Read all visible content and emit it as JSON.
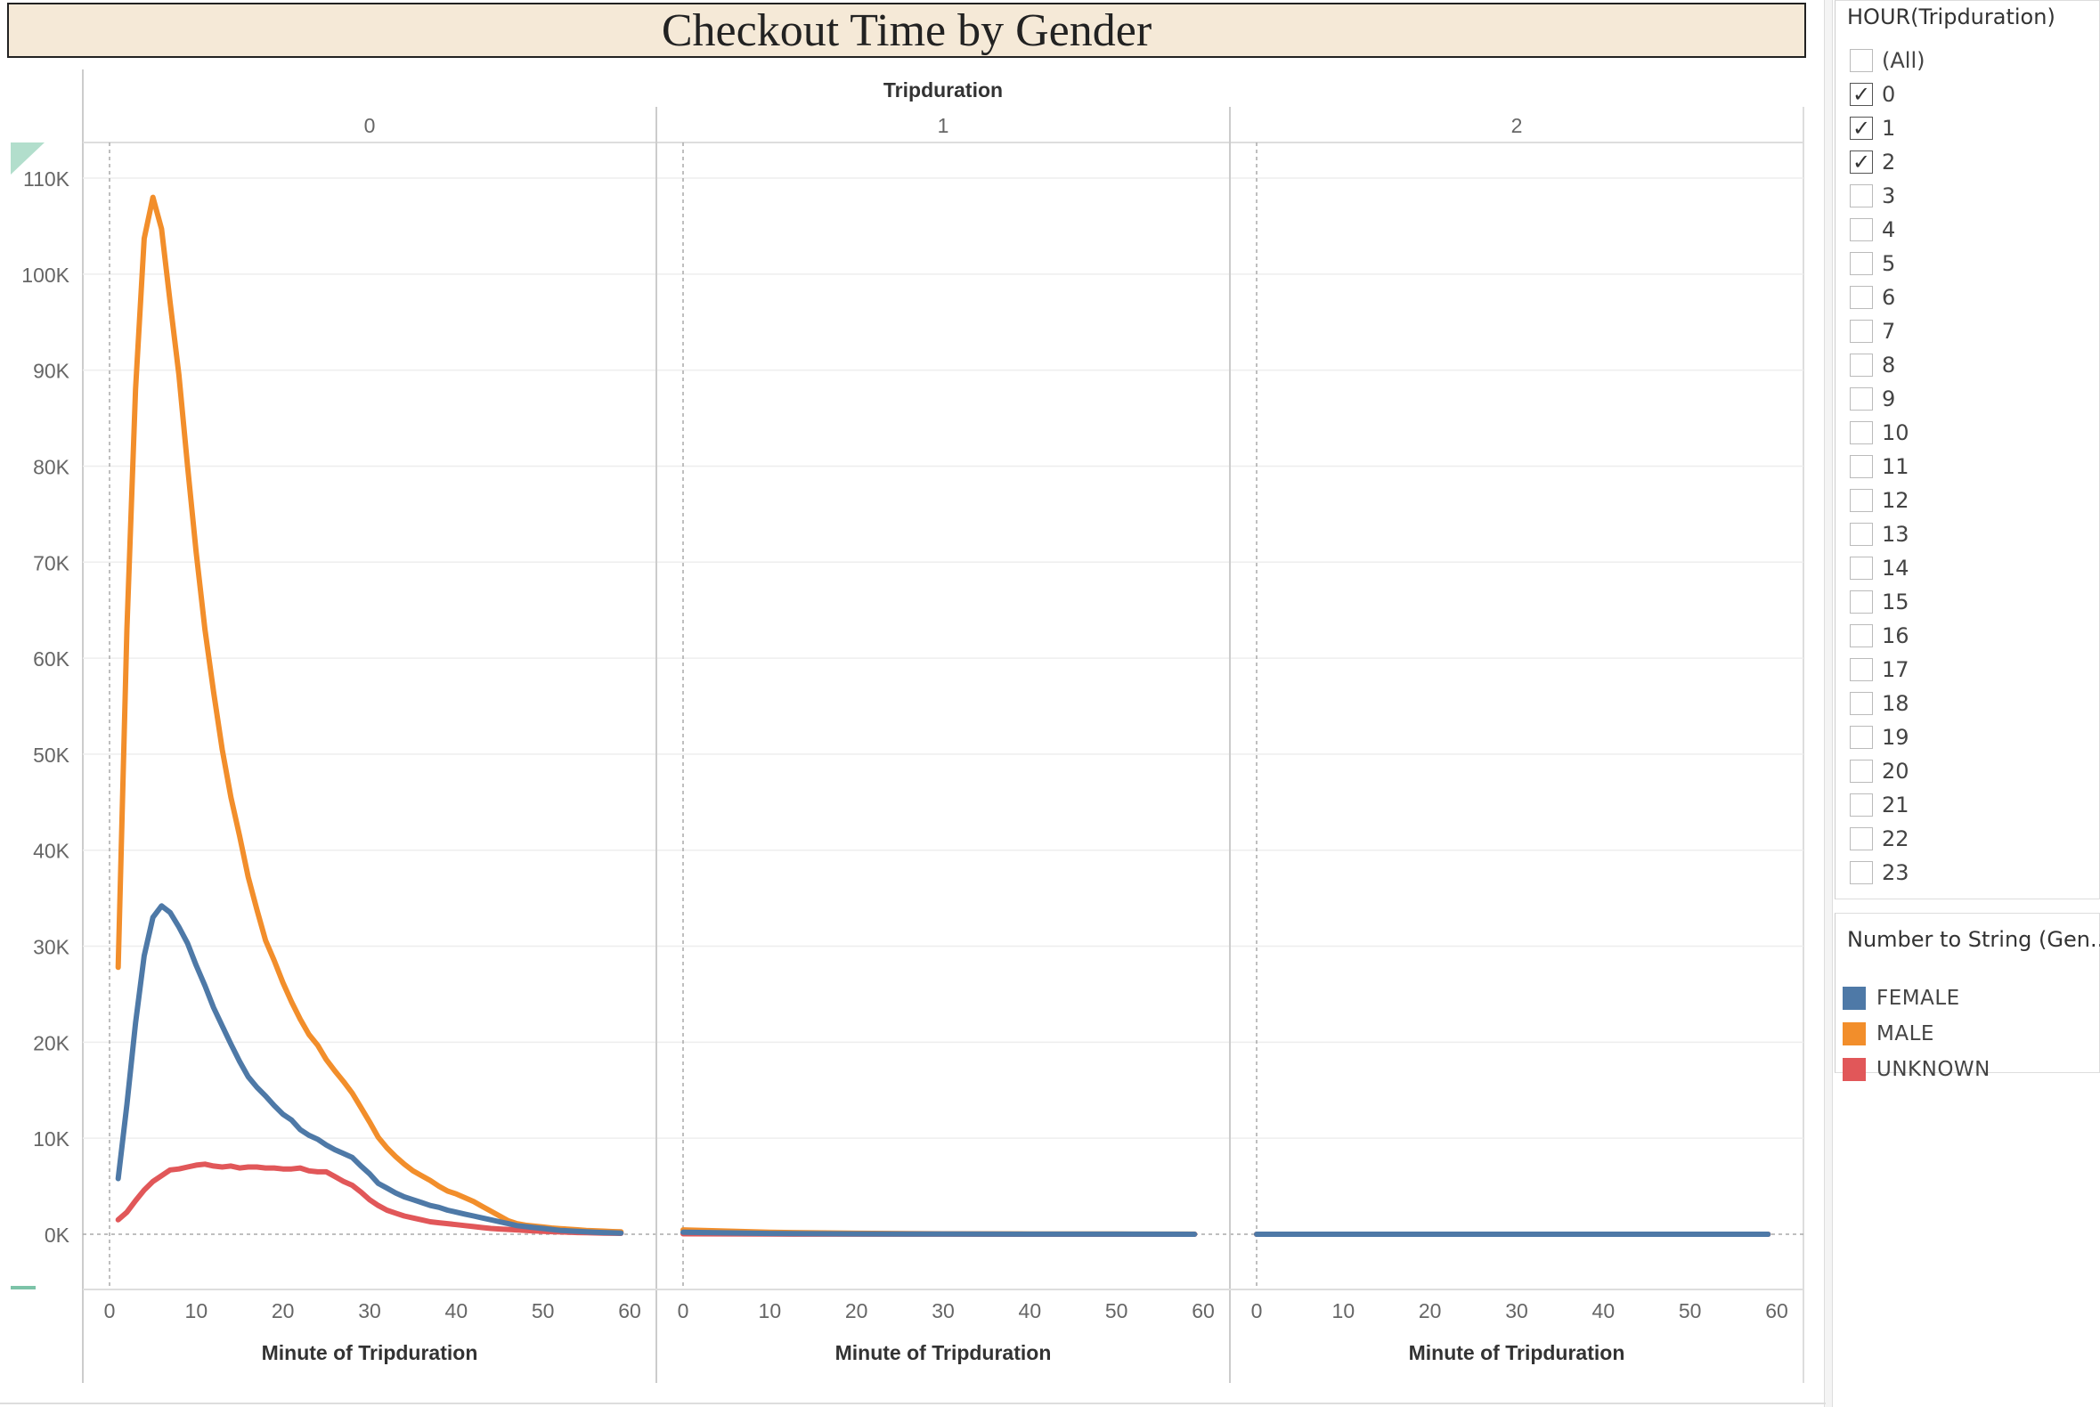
{
  "title": "Checkout Time by Gender",
  "filter": {
    "title": "HOUR(Tripduration)",
    "items": [
      {
        "label": "(All)",
        "checked": false
      },
      {
        "label": "0",
        "checked": true
      },
      {
        "label": "1",
        "checked": true
      },
      {
        "label": "2",
        "checked": true
      },
      {
        "label": "3",
        "checked": false
      },
      {
        "label": "4",
        "checked": false
      },
      {
        "label": "5",
        "checked": false
      },
      {
        "label": "6",
        "checked": false
      },
      {
        "label": "7",
        "checked": false
      },
      {
        "label": "8",
        "checked": false
      },
      {
        "label": "9",
        "checked": false
      },
      {
        "label": "10",
        "checked": false
      },
      {
        "label": "11",
        "checked": false
      },
      {
        "label": "12",
        "checked": false
      },
      {
        "label": "13",
        "checked": false
      },
      {
        "label": "14",
        "checked": false
      },
      {
        "label": "15",
        "checked": false
      },
      {
        "label": "16",
        "checked": false
      },
      {
        "label": "17",
        "checked": false
      },
      {
        "label": "18",
        "checked": false
      },
      {
        "label": "19",
        "checked": false
      },
      {
        "label": "20",
        "checked": false
      },
      {
        "label": "21",
        "checked": false
      },
      {
        "label": "22",
        "checked": false
      },
      {
        "label": "23",
        "checked": false
      }
    ]
  },
  "legend": {
    "title": "Number to String (Gen...",
    "items": [
      {
        "label": "FEMALE",
        "color": "#4e79a7"
      },
      {
        "label": "MALE",
        "color": "#f28e2b"
      },
      {
        "label": "UNKNOWN",
        "color": "#e15759"
      }
    ]
  },
  "chart_data": {
    "type": "line",
    "column_header": "Tripduration",
    "panels": [
      {
        "label": "0",
        "series": [
          {
            "name": "FEMALE",
            "color": "#4e79a7",
            "x": [
              1,
              2,
              3,
              4,
              5,
              6,
              7,
              8,
              9,
              10,
              11,
              12,
              13,
              14,
              15,
              16,
              17,
              18,
              19,
              20,
              21,
              22,
              23,
              24,
              25,
              26,
              27,
              28,
              29,
              30,
              31,
              32,
              33,
              34,
              35,
              36,
              37,
              38,
              39,
              40,
              41,
              42,
              43,
              44,
              45,
              46,
              47,
              48,
              49,
              50,
              51,
              52,
              53,
              54,
              55,
              56,
              57,
              58,
              59
            ],
            "y": [
              5800,
              13500,
              22000,
              29000,
              33000,
              34200,
              33500,
              32000,
              30300,
              28000,
              25900,
              23600,
              21700,
              19800,
              18000,
              16400,
              15300,
              14400,
              13400,
              12500,
              11900,
              10900,
              10300,
              9900,
              9300,
              8800,
              8400,
              8000,
              7100,
              6300,
              5300,
              4800,
              4300,
              3900,
              3600,
              3300,
              3000,
              2800,
              2500,
              2300,
              2100,
              1900,
              1700,
              1500,
              1300,
              1100,
              900,
              800,
              700,
              600,
              500,
              400,
              350,
              300,
              250,
              200,
              180,
              150,
              120
            ]
          },
          {
            "name": "MALE",
            "color": "#f28e2b",
            "x": [
              1,
              2,
              3,
              4,
              5,
              6,
              7,
              8,
              9,
              10,
              11,
              12,
              13,
              14,
              15,
              16,
              17,
              18,
              19,
              20,
              21,
              22,
              23,
              24,
              25,
              26,
              27,
              28,
              29,
              30,
              31,
              32,
              33,
              34,
              35,
              36,
              37,
              38,
              39,
              40,
              41,
              42,
              43,
              44,
              45,
              46,
              47,
              48,
              49,
              50,
              51,
              52,
              53,
              54,
              55,
              56,
              57,
              58,
              59
            ],
            "y": [
              27800,
              63000,
              88000,
              103700,
              108000,
              104700,
              97000,
              89500,
              80000,
              71000,
              63000,
              56500,
              50500,
              45500,
              41500,
              37200,
              33800,
              30600,
              28500,
              26200,
              24200,
              22400,
              20800,
              19700,
              18200,
              17000,
              15900,
              14700,
              13200,
              11700,
              10100,
              9000,
              8100,
              7300,
              6600,
              6100,
              5600,
              5000,
              4500,
              4200,
              3800,
              3400,
              2900,
              2400,
              1900,
              1400,
              1100,
              950,
              850,
              750,
              650,
              580,
              520,
              460,
              400,
              360,
              320,
              280,
              250
            ]
          },
          {
            "name": "UNKNOWN",
            "color": "#e15759",
            "x": [
              1,
              2,
              3,
              4,
              5,
              6,
              7,
              8,
              9,
              10,
              11,
              12,
              13,
              14,
              15,
              16,
              17,
              18,
              19,
              20,
              21,
              22,
              23,
              24,
              25,
              26,
              27,
              28,
              29,
              30,
              31,
              32,
              33,
              34,
              35,
              36,
              37,
              38,
              39,
              40,
              41,
              42,
              43,
              44,
              45,
              46,
              47,
              48,
              49,
              50,
              51,
              52,
              53,
              54,
              55,
              56,
              57,
              58,
              59
            ],
            "y": [
              1500,
              2300,
              3500,
              4600,
              5500,
              6100,
              6700,
              6800,
              7000,
              7200,
              7300,
              7100,
              7000,
              7100,
              6900,
              7000,
              7000,
              6900,
              6900,
              6800,
              6800,
              6900,
              6600,
              6500,
              6500,
              6000,
              5500,
              5100,
              4400,
              3600,
              3000,
              2500,
              2200,
              1900,
              1700,
              1500,
              1300,
              1200,
              1100,
              1000,
              900,
              800,
              700,
              600,
              550,
              500,
              450,
              400,
              350,
              300,
              270,
              240,
              210,
              180,
              160,
              140,
              120,
              100,
              90
            ]
          }
        ]
      },
      {
        "label": "1",
        "series": [
          {
            "name": "FEMALE",
            "color": "#4e79a7",
            "x": [
              0,
              10,
              20,
              30,
              40,
              50,
              59
            ],
            "y": [
              200,
              80,
              40,
              20,
              10,
              5,
              0
            ]
          },
          {
            "name": "MALE",
            "color": "#f28e2b",
            "x": [
              0,
              10,
              20,
              30,
              40,
              50,
              59
            ],
            "y": [
              450,
              200,
              100,
              50,
              30,
              15,
              5
            ]
          },
          {
            "name": "UNKNOWN",
            "color": "#e15759",
            "x": [
              0,
              10,
              20,
              30,
              40,
              50,
              59
            ],
            "y": [
              50,
              20,
              10,
              5,
              3,
              2,
              0
            ]
          }
        ]
      },
      {
        "label": "2",
        "series": [
          {
            "name": "FEMALE",
            "color": "#4e79a7",
            "x": [
              0,
              10,
              20,
              30,
              40,
              50,
              59
            ],
            "y": [
              0,
              0,
              0,
              0,
              0,
              0,
              0
            ]
          },
          {
            "name": "MALE",
            "color": "#f28e2b",
            "x": [
              0,
              10,
              20,
              30,
              40,
              50,
              59
            ],
            "y": [
              0,
              0,
              0,
              0,
              0,
              0,
              0
            ]
          },
          {
            "name": "UNKNOWN",
            "color": "#e15759",
            "x": [
              0,
              10,
              20,
              30,
              40,
              50,
              59
            ],
            "y": [
              0,
              0,
              0,
              0,
              0,
              0,
              0
            ]
          }
        ]
      }
    ],
    "xlabel": "Minute of Tripduration",
    "xticks": [
      "0",
      "10",
      "20",
      "30",
      "40",
      "50",
      "60"
    ],
    "xlim": [
      0,
      60
    ],
    "ylabel": "",
    "yticks": [
      "0K",
      "10K",
      "20K",
      "30K",
      "40K",
      "50K",
      "60K",
      "70K",
      "80K",
      "90K",
      "100K",
      "110K"
    ],
    "ylim": [
      0,
      110000
    ],
    "grid": true,
    "legend_position": "right"
  }
}
